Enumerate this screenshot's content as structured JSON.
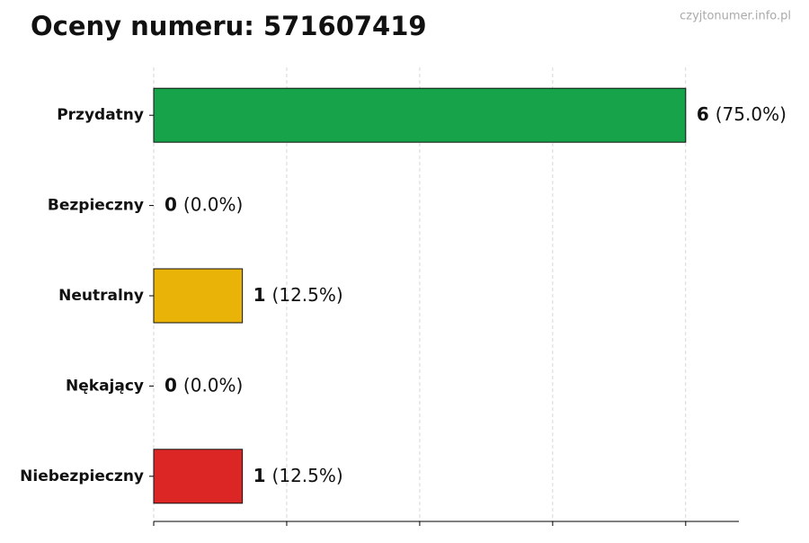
{
  "chart_data": {
    "type": "barh",
    "title": "Oceny numeru: 571607419",
    "watermark": "czyjtonumer.info.pl",
    "categories": [
      "Przydatny",
      "Bezpieczny",
      "Neutralny",
      "Nękający",
      "Niebezpieczny"
    ],
    "values": [
      6,
      0,
      1,
      0,
      1
    ],
    "percent_labels": [
      "(75.0%)",
      "(0.0%)",
      "(12.5%)",
      "(0.0%)",
      "(12.5%)"
    ],
    "colors": [
      "#16a34a",
      "#2563eb",
      "#eab308",
      "#f97316",
      "#dc2626"
    ],
    "xlim": [
      0,
      6.6
    ],
    "xticks": [
      0,
      1.5,
      3,
      4.5,
      6
    ],
    "grid": true
  }
}
